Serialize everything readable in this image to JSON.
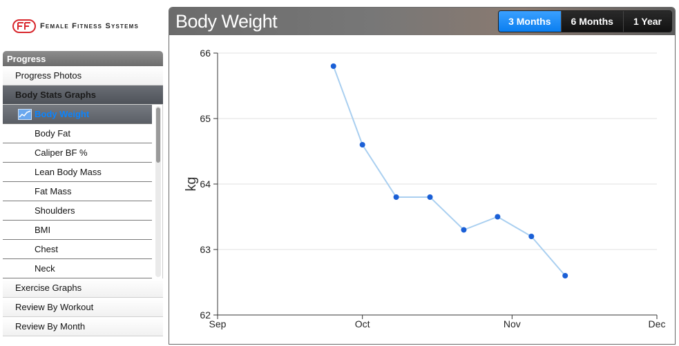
{
  "brand": {
    "name": "Female Fitness Systems",
    "mark_color": "#d8262c"
  },
  "sidebar": {
    "header": "Progress",
    "items_top": [
      {
        "label": "Progress Photos"
      },
      {
        "label": "Body Stats Graphs",
        "active": true
      }
    ],
    "sub_items": [
      {
        "label": "Body Weight",
        "selected": true,
        "icon": "line-graph-icon"
      },
      {
        "label": "Body Fat"
      },
      {
        "label": "Caliper BF %"
      },
      {
        "label": "Lean Body Mass"
      },
      {
        "label": "Fat Mass"
      },
      {
        "label": "Shoulders"
      },
      {
        "label": "BMI"
      },
      {
        "label": "Chest"
      },
      {
        "label": "Neck"
      }
    ],
    "items_bottom": [
      {
        "label": "Exercise Graphs"
      },
      {
        "label": "Review By Workout"
      },
      {
        "label": "Review By Month"
      }
    ]
  },
  "panel": {
    "title": "Body Weight",
    "ranges": [
      {
        "label": "3 Months",
        "active": true
      },
      {
        "label": "6 Months",
        "active": false
      },
      {
        "label": "1 Year",
        "active": false
      }
    ]
  },
  "colors": {
    "accent": "#0a84ff",
    "line": "#a9cff0",
    "point": "#1a5fd6"
  },
  "chart_data": {
    "type": "line",
    "title": "",
    "ylabel": "kg",
    "xlabel": "",
    "x_ticks": [
      "Sep",
      "Oct",
      "Nov",
      "Dec"
    ],
    "xlim": [
      "Sep 1",
      "Dec 1"
    ],
    "ylim": [
      62,
      66
    ],
    "y_ticks": [
      62,
      63,
      64,
      65,
      66
    ],
    "grid": true,
    "series": [
      {
        "x": [
          "Sep 25",
          "Oct 1",
          "Oct 8",
          "Oct 15",
          "Oct 22",
          "Oct 29",
          "Nov 5",
          "Nov 12"
        ],
        "values": [
          65.8,
          64.6,
          63.8,
          63.8,
          63.3,
          63.5,
          63.2,
          62.6
        ]
      }
    ]
  }
}
